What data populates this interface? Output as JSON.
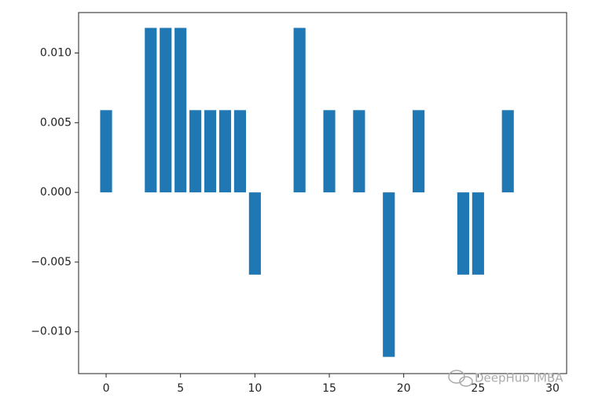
{
  "chart_data": {
    "type": "bar",
    "x": [
      0,
      3,
      4,
      5,
      6,
      7,
      8,
      9,
      10,
      13,
      15,
      17,
      19,
      21,
      24,
      25,
      27
    ],
    "values": [
      0.0059,
      0.0118,
      0.0118,
      0.0118,
      0.0059,
      0.0059,
      0.0059,
      0.0059,
      -0.0059,
      0.0118,
      0.0059,
      0.0059,
      -0.0118,
      0.0059,
      -0.0059,
      -0.0059,
      0.0059
    ],
    "color": "#1f77b4",
    "xlim": [
      -1.85,
      30.95
    ],
    "xticks": [
      0,
      5,
      10,
      15,
      20,
      25,
      30
    ],
    "ylim": [
      -0.013,
      0.0129
    ],
    "yticks": [
      {
        "value": -0.01,
        "label": "−0.010"
      },
      {
        "value": -0.005,
        "label": "−0.005"
      },
      {
        "value": 0,
        "label": "0.000"
      },
      {
        "value": 0.005,
        "label": "0.005"
      },
      {
        "value": 0.01,
        "label": "0.010"
      }
    ],
    "watermark": "DeepHub IMBA"
  }
}
